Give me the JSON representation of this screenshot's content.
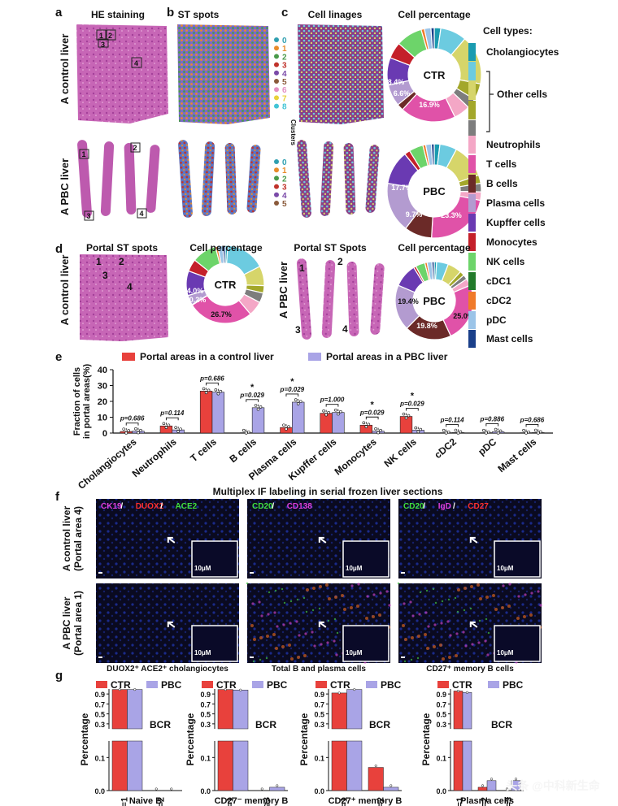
{
  "panels": {
    "a": "a",
    "b": "b",
    "c": "c",
    "d": "d",
    "e": "e",
    "f": "f",
    "g": "g"
  },
  "top": {
    "col_titles": [
      "HE staining",
      "ST spots",
      "Cell linages",
      "Cell percentage"
    ],
    "row_labels": [
      "A control liver",
      "A PBC liver"
    ],
    "he_boxes_ctrl": [
      "1",
      "2",
      "3",
      "4"
    ],
    "he_boxes_pbc": [
      "1",
      "2",
      "3",
      "4"
    ],
    "clusters_ctrl": [
      "0",
      "1",
      "2",
      "3",
      "4",
      "5",
      "6",
      "7",
      "8"
    ],
    "clusters_pbc": [
      "0",
      "1",
      "2",
      "3",
      "4",
      "5"
    ],
    "clusters_label": "Clusters",
    "cluster_colors": [
      "#2f9fb0",
      "#e98b2a",
      "#4a9a4a",
      "#c0332b",
      "#7a4aa8",
      "#8a5a3a",
      "#e38fc2",
      "#e8d237",
      "#43c5d6"
    ]
  },
  "cell_types": {
    "title": "Cell types:",
    "items": [
      "Cholangiocytes",
      "Other cells",
      "Neutrophils",
      "T cells",
      "B cells",
      "Plasma cells",
      "Kupffer cells",
      "Monocytes",
      "NK cells",
      "cDC1",
      "cDC2",
      "pDC",
      "Mast cells"
    ],
    "colors": {
      "Cholangiocytes": "#1a9bb0",
      "Other": [
        "#6ccbe0",
        "#d6d56a",
        "#a3a72a",
        "#7d7d7d"
      ],
      "Neutrophils": "#f4a7c6",
      "T cells": "#e052a8",
      "B cells": "#6b2a28",
      "Plasma cells": "#b39bd0",
      "Kupffer cells": "#6a3ab2",
      "Monocytes": "#c4202a",
      "NK cells": "#6dd46a",
      "cDC1": "#227a2a",
      "cDC2": "#f07a2a",
      "pDC": "#9bc4e8",
      "Mast cells": "#1a3f8a"
    }
  },
  "donuts": [
    {
      "center": "CTR",
      "labels": [
        "8.4%",
        "6.6%",
        "16.9%"
      ]
    },
    {
      "center": "PBC",
      "labels": [
        "17.7%",
        "9.7%",
        "23.3%"
      ]
    },
    {
      "center": "CTR",
      "labels": [
        "4.0%",
        "0.2%",
        "26.7%"
      ]
    },
    {
      "center": "PBC",
      "labels": [
        "19.4%",
        "19.8%",
        "25.0%"
      ]
    }
  ],
  "portal": {
    "titles": [
      "Portal ST spots",
      "Cell percentage",
      "Portal ST Spots",
      "Cell percentage"
    ],
    "row_labels": [
      "A control liver",
      "A PBC liver"
    ],
    "nums_ctrl": [
      "1",
      "2",
      "3",
      "4"
    ],
    "nums_pbc": [
      "1",
      "2",
      "3",
      "4"
    ]
  },
  "chart_data": [
    {
      "type": "bar",
      "legend": [
        "Portal areas in a control liver",
        "Portal areas in a PBC liver"
      ],
      "ylabel": "Fraction of cells in portal areas(%)",
      "ylim": [
        0,
        40
      ],
      "yticks": [
        "0",
        "10",
        "20",
        "30",
        "40"
      ],
      "categories": [
        "Cholangiocytes",
        "Neutrophils",
        "T cells",
        "B cells",
        "Plasma cells",
        "Kupffer cells",
        "Monocytes",
        "NK cells",
        "cDC2",
        "pDC",
        "Mast cells"
      ],
      "series": [
        {
          "name": "Portal areas in a control liver",
          "values": [
            1.0,
            4.5,
            26.5,
            0.2,
            3.5,
            12.5,
            5.0,
            10.5,
            0.2,
            0.2,
            0.2
          ]
        },
        {
          "name": "Portal areas in a PBC liver",
          "values": [
            1.2,
            2.0,
            25.8,
            16.0,
            19.5,
            13.0,
            1.2,
            1.8,
            0.3,
            0.8,
            0.3
          ]
        }
      ],
      "pvalues": [
        "p=0.686",
        "p=0.114",
        "p=0.686",
        "p=0.029",
        "p=0.029",
        "p=1.000",
        "p=0.029",
        "p=0.029",
        "p=0.114",
        "p=0.886",
        "p=0.686"
      ],
      "colors": [
        "#e8413c",
        "#a9a4e6"
      ]
    },
    {
      "type": "bar",
      "legend": [
        "CTR",
        "PBC"
      ],
      "ylabel": "Percentage",
      "yticks_upper": [
        "0.3",
        "0.5",
        "0.7",
        "0.9"
      ],
      "yticks_lower": [
        "0.0",
        "0.1"
      ],
      "subcharts": [
        {
          "categories": [
            "N=1",
            "N=2"
          ],
          "ctr": [
            0.99,
            0.0
          ],
          "pbc": [
            0.99,
            0.0
          ],
          "title": "BCR",
          "xlabel": "Naive B"
        },
        {
          "categories": [
            "N=1",
            "N≥3"
          ],
          "ctr": [
            0.99,
            0.0
          ],
          "pbc": [
            0.98,
            0.01
          ],
          "title": "BCR",
          "xlabel": "CD27⁻ memory B"
        },
        {
          "categories": [
            "N=1",
            "N=2"
          ],
          "ctr": [
            0.92,
            0.07
          ],
          "pbc": [
            0.99,
            0.01
          ],
          "title": "BCR",
          "xlabel": "CD27⁺ memory B"
        },
        {
          "categories": [
            "N=1",
            "N=2",
            "N=3"
          ],
          "ctr": [
            0.96,
            0.01,
            0.0
          ],
          "pbc": [
            0.93,
            0.03,
            0.03
          ],
          "title": "BCR",
          "xlabel": "Plasma cells"
        }
      ]
    }
  ],
  "if_panel": {
    "title": "Multiplex IF labeling in serial frozen liver sections",
    "stains": [
      [
        {
          "t": "CK19",
          "c": "#e040e0"
        },
        {
          "t": " / ",
          "c": "#fff"
        },
        {
          "t": "DUOX2",
          "c": "#ff3030"
        },
        {
          "t": " / ",
          "c": "#fff"
        },
        {
          "t": "ACE2",
          "c": "#40e040"
        }
      ],
      [
        {
          "t": "CD20",
          "c": "#40e040"
        },
        {
          "t": " / ",
          "c": "#fff"
        },
        {
          "t": "CD138",
          "c": "#e040e0"
        }
      ],
      [
        {
          "t": "CD20",
          "c": "#40e040"
        },
        {
          "t": " / ",
          "c": "#fff"
        },
        {
          "t": "IgD",
          "c": "#e040e0"
        },
        {
          "t": " / ",
          "c": "#fff"
        },
        {
          "t": "CD27",
          "c": "#ff3030"
        }
      ]
    ],
    "row_labels": [
      "A control liver (Portal area 4)",
      "A PBC liver (Portal area 1)"
    ],
    "scale": "10μM",
    "captions": [
      "DUOX2⁺ ACE2⁺ cholangiocytes",
      "Total B  and plasma cells",
      "CD27⁺ memory B cells"
    ]
  },
  "watermark": "头条 @中科新生命"
}
